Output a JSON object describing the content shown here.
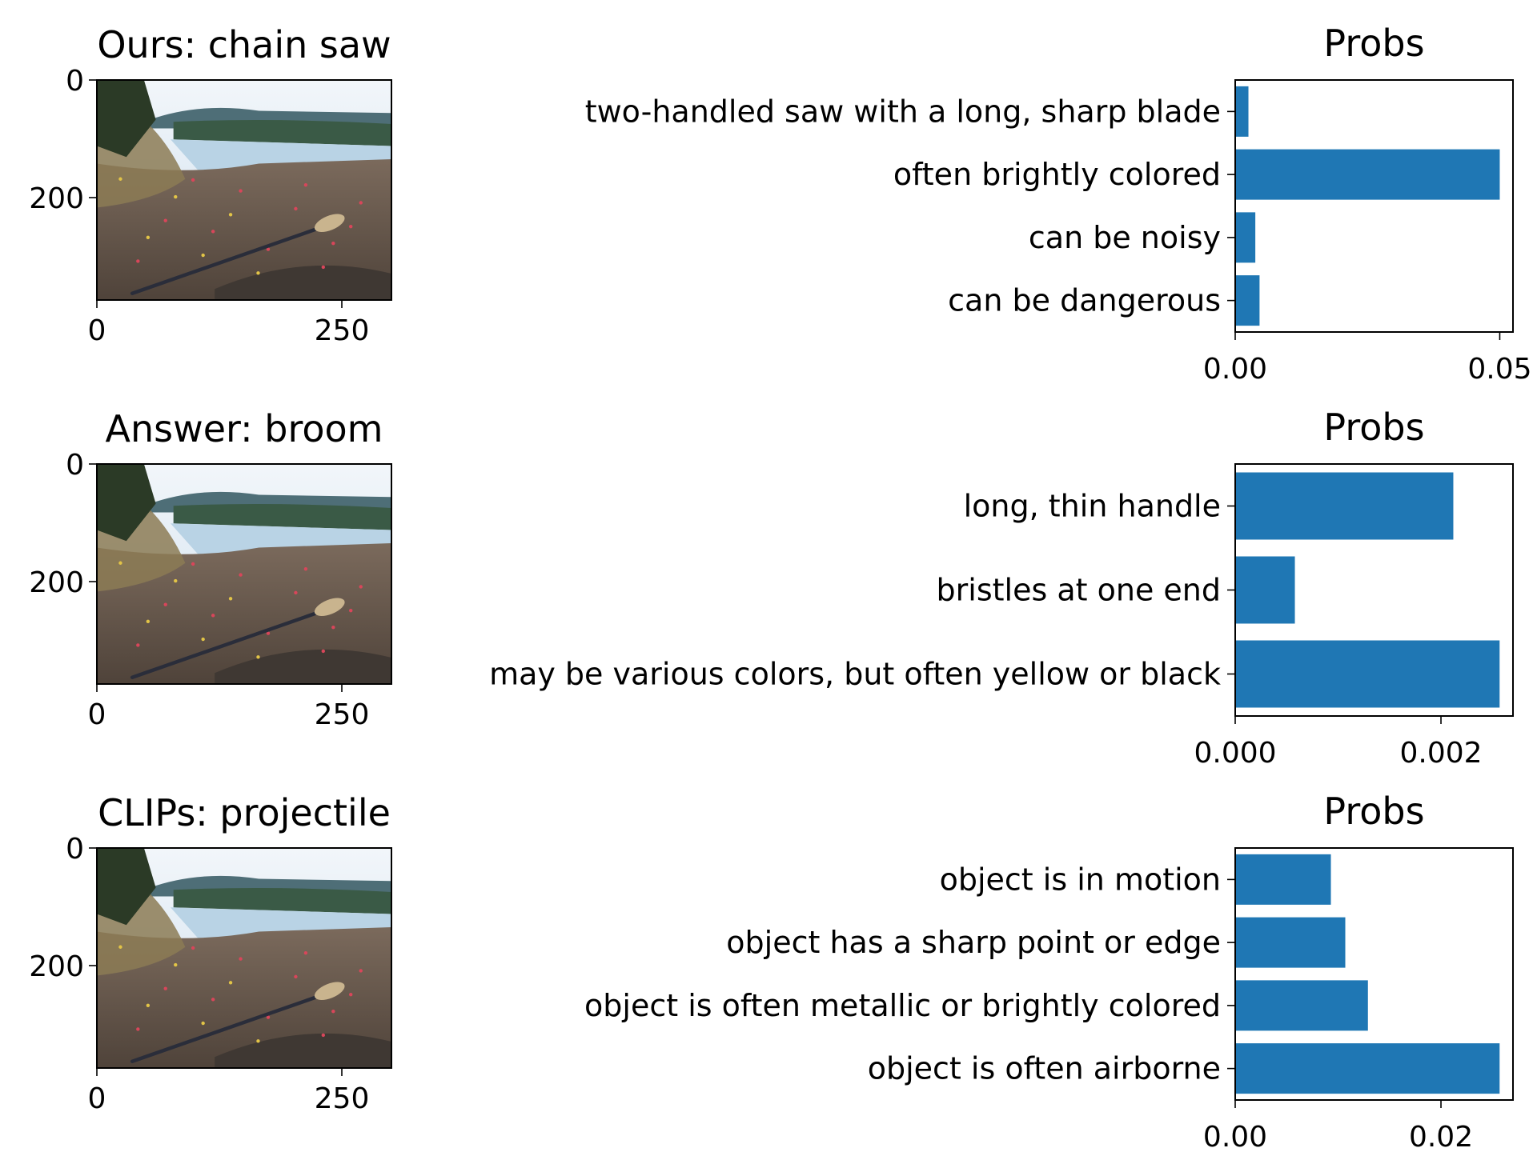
{
  "colors": {
    "bar": "#1f77b4",
    "axis": "#000000",
    "background": "#ffffff"
  },
  "chart_data": [
    {
      "type": "image",
      "title": "Ours: chain saw",
      "image_content": "photo of a lake shore with a broom lying on dirt ground",
      "x_ticks": [
        "0",
        "250"
      ],
      "y_ticks": [
        "0",
        "200"
      ]
    },
    {
      "type": "bar",
      "orientation": "horizontal",
      "title": "Probs",
      "categories": [
        "two-handled saw with a long, sharp blade",
        "often brightly colored",
        "can be noisy",
        "can be dangerous"
      ],
      "values": [
        0.0025,
        0.05,
        0.0038,
        0.0046
      ],
      "x_ticks": [
        0.0,
        0.05
      ],
      "x_tick_labels": [
        "0.00",
        "0.05"
      ],
      "xlim": [
        0,
        0.0525
      ]
    },
    {
      "type": "image",
      "title": "Answer: broom",
      "image_content": "photo of a lake shore with a broom lying on dirt ground",
      "x_ticks": [
        "0",
        "250"
      ],
      "y_ticks": [
        "0",
        "200"
      ]
    },
    {
      "type": "bar",
      "orientation": "horizontal",
      "title": "Probs",
      "categories": [
        "long, thin handle",
        "bristles at one end",
        "may be various colors, but often yellow or black"
      ],
      "values": [
        0.00212,
        0.00058,
        0.00257
      ],
      "x_ticks": [
        0.0,
        0.002
      ],
      "x_tick_labels": [
        "0.000",
        "0.002"
      ],
      "xlim": [
        0,
        0.0027
      ]
    },
    {
      "type": "image",
      "title": "CLIPs: projectile",
      "image_content": "photo of a lake shore with a broom lying on dirt ground",
      "x_ticks": [
        "0",
        "250"
      ],
      "y_ticks": [
        "0",
        "200"
      ]
    },
    {
      "type": "bar",
      "orientation": "horizontal",
      "title": "Probs",
      "categories": [
        "object is in motion",
        "object has a sharp point or edge",
        "object is often metallic or brightly colored",
        "object is often airborne"
      ],
      "values": [
        0.0093,
        0.0107,
        0.0129,
        0.0257
      ],
      "x_ticks": [
        0.0,
        0.02
      ],
      "x_tick_labels": [
        "0.00",
        "0.02"
      ],
      "xlim": [
        0,
        0.027
      ]
    }
  ]
}
